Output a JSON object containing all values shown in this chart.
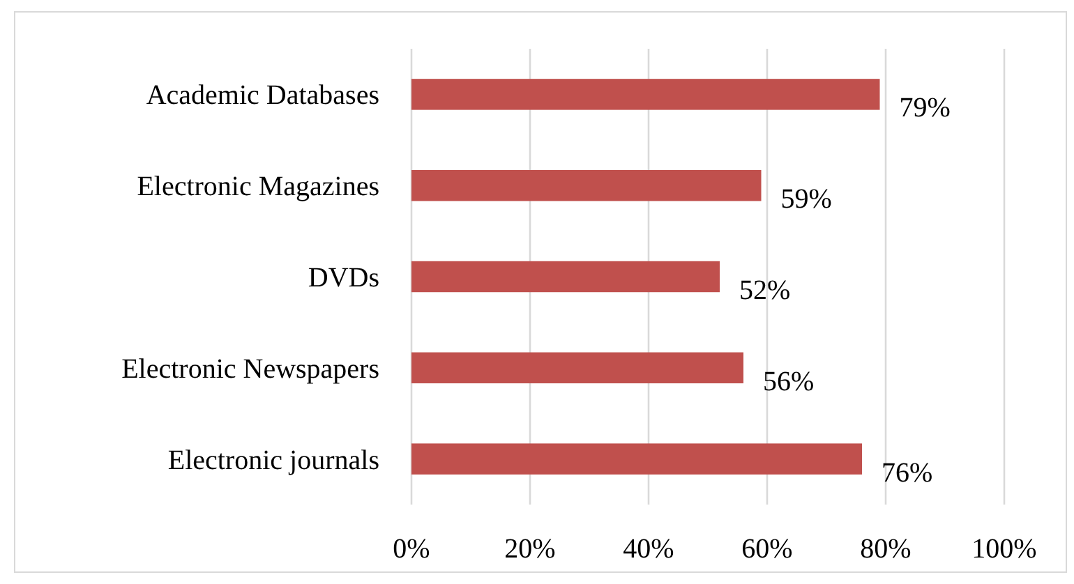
{
  "chart_data": {
    "type": "bar",
    "orientation": "horizontal",
    "categories": [
      "Academic Databases",
      "Electronic Magazines",
      "DVDs",
      "Electronic Newspapers",
      "Electronic journals"
    ],
    "values": [
      79,
      59,
      52,
      56,
      76
    ],
    "value_labels": [
      "79%",
      "59%",
      "52%",
      "56%",
      "76%"
    ],
    "color": "#c0504d",
    "xlim": [
      0,
      100
    ],
    "xticks": [
      {
        "value": 0,
        "label": "0%"
      },
      {
        "value": 20,
        "label": "20%"
      },
      {
        "value": 40,
        "label": "40%"
      },
      {
        "value": 60,
        "label": "60%"
      },
      {
        "value": 80,
        "label": "80%"
      },
      {
        "value": 100,
        "label": "100%"
      }
    ],
    "grid": "x"
  }
}
